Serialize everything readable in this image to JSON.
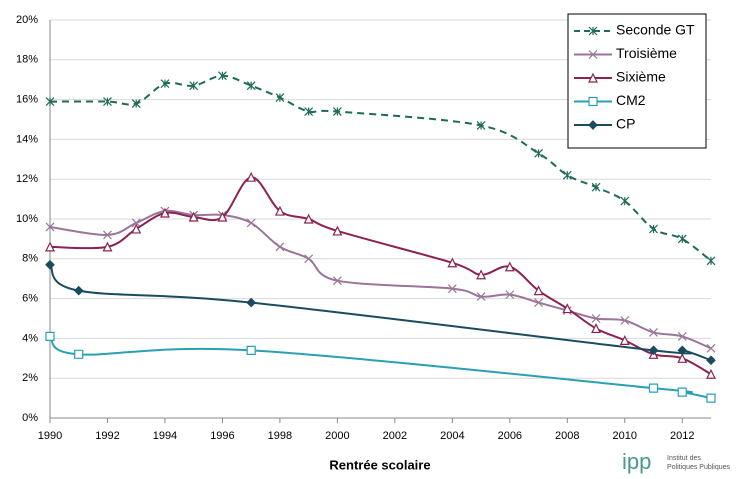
{
  "chart_data": {
    "type": "line",
    "x_label": "Rentrée scolaire",
    "xlim": [
      1990,
      2013
    ],
    "xticks": [
      1990,
      1992,
      1994,
      1996,
      1998,
      2000,
      2002,
      2004,
      2006,
      2008,
      2010,
      2012
    ],
    "ylim": [
      0,
      20
    ],
    "yticks": [
      {
        "value": 0,
        "label": "0%"
      },
      {
        "value": 2,
        "label": "2%"
      },
      {
        "value": 4,
        "label": "4%"
      },
      {
        "value": 6,
        "label": "6%"
      },
      {
        "value": 8,
        "label": "8%"
      },
      {
        "value": 10,
        "label": "10%"
      },
      {
        "value": 12,
        "label": "12%"
      },
      {
        "value": 14,
        "label": "14%"
      },
      {
        "value": 16,
        "label": "16%"
      },
      {
        "value": 18,
        "label": "18%"
      },
      {
        "value": 20,
        "label": "20%"
      }
    ],
    "grid": true,
    "legend": "top-right",
    "series": [
      {
        "name": "Seconde GT",
        "color": "#1f6b58",
        "marker": "asterisk",
        "dashed": true,
        "x": [
          1990,
          1992,
          1993,
          1994,
          1995,
          1996,
          1997,
          1998,
          1999,
          2000,
          2005,
          2007,
          2008,
          2009,
          2010,
          2011,
          2012,
          2013
        ],
        "values": [
          15.9,
          15.9,
          15.8,
          16.8,
          16.7,
          17.2,
          16.7,
          16.1,
          15.4,
          15.4,
          14.7,
          13.3,
          12.2,
          11.6,
          10.9,
          9.5,
          9.0,
          7.9
        ]
      },
      {
        "name": "Troisième",
        "color": "#9a7499",
        "marker": "x",
        "dashed": false,
        "x": [
          1990,
          1992,
          1993,
          1994,
          1995,
          1996,
          1997,
          1998,
          1999,
          2000,
          2004,
          2005,
          2006,
          2007,
          2008,
          2009,
          2010,
          2011,
          2012,
          2013
        ],
        "values": [
          9.6,
          9.2,
          9.8,
          10.4,
          10.2,
          10.2,
          9.8,
          8.6,
          8.0,
          6.9,
          6.5,
          6.1,
          6.2,
          5.8,
          5.4,
          5.0,
          4.9,
          4.3,
          4.1,
          3.5
        ]
      },
      {
        "name": "Sixième",
        "color": "#8b2252",
        "marker": "triangle",
        "dashed": false,
        "x": [
          1990,
          1992,
          1993,
          1994,
          1995,
          1996,
          1997,
          1998,
          1999,
          2000,
          2004,
          2005,
          2006,
          2007,
          2008,
          2009,
          2010,
          2011,
          2012,
          2013
        ],
        "values": [
          8.6,
          8.6,
          9.5,
          10.3,
          10.1,
          10.1,
          12.1,
          10.4,
          10.0,
          9.4,
          7.8,
          7.2,
          7.6,
          6.4,
          5.5,
          4.5,
          3.9,
          3.2,
          3.0,
          2.2
        ]
      },
      {
        "name": "CM2",
        "color": "#2aa0b5",
        "marker": "square",
        "dashed": false,
        "x": [
          1990,
          1991,
          1997,
          2011,
          2012,
          2013
        ],
        "values": [
          4.1,
          3.2,
          3.4,
          1.5,
          1.3,
          1.0
        ]
      },
      {
        "name": "CP",
        "color": "#1a4c5e",
        "marker": "diamond",
        "dashed": false,
        "x": [
          1990,
          1991,
          1997,
          2011,
          2012,
          2013
        ],
        "values": [
          7.7,
          6.4,
          5.8,
          3.4,
          3.4,
          2.9
        ]
      }
    ]
  },
  "logo": {
    "mark": "ipp",
    "line1": "Institut des",
    "line2": "Politiques Publiques"
  }
}
